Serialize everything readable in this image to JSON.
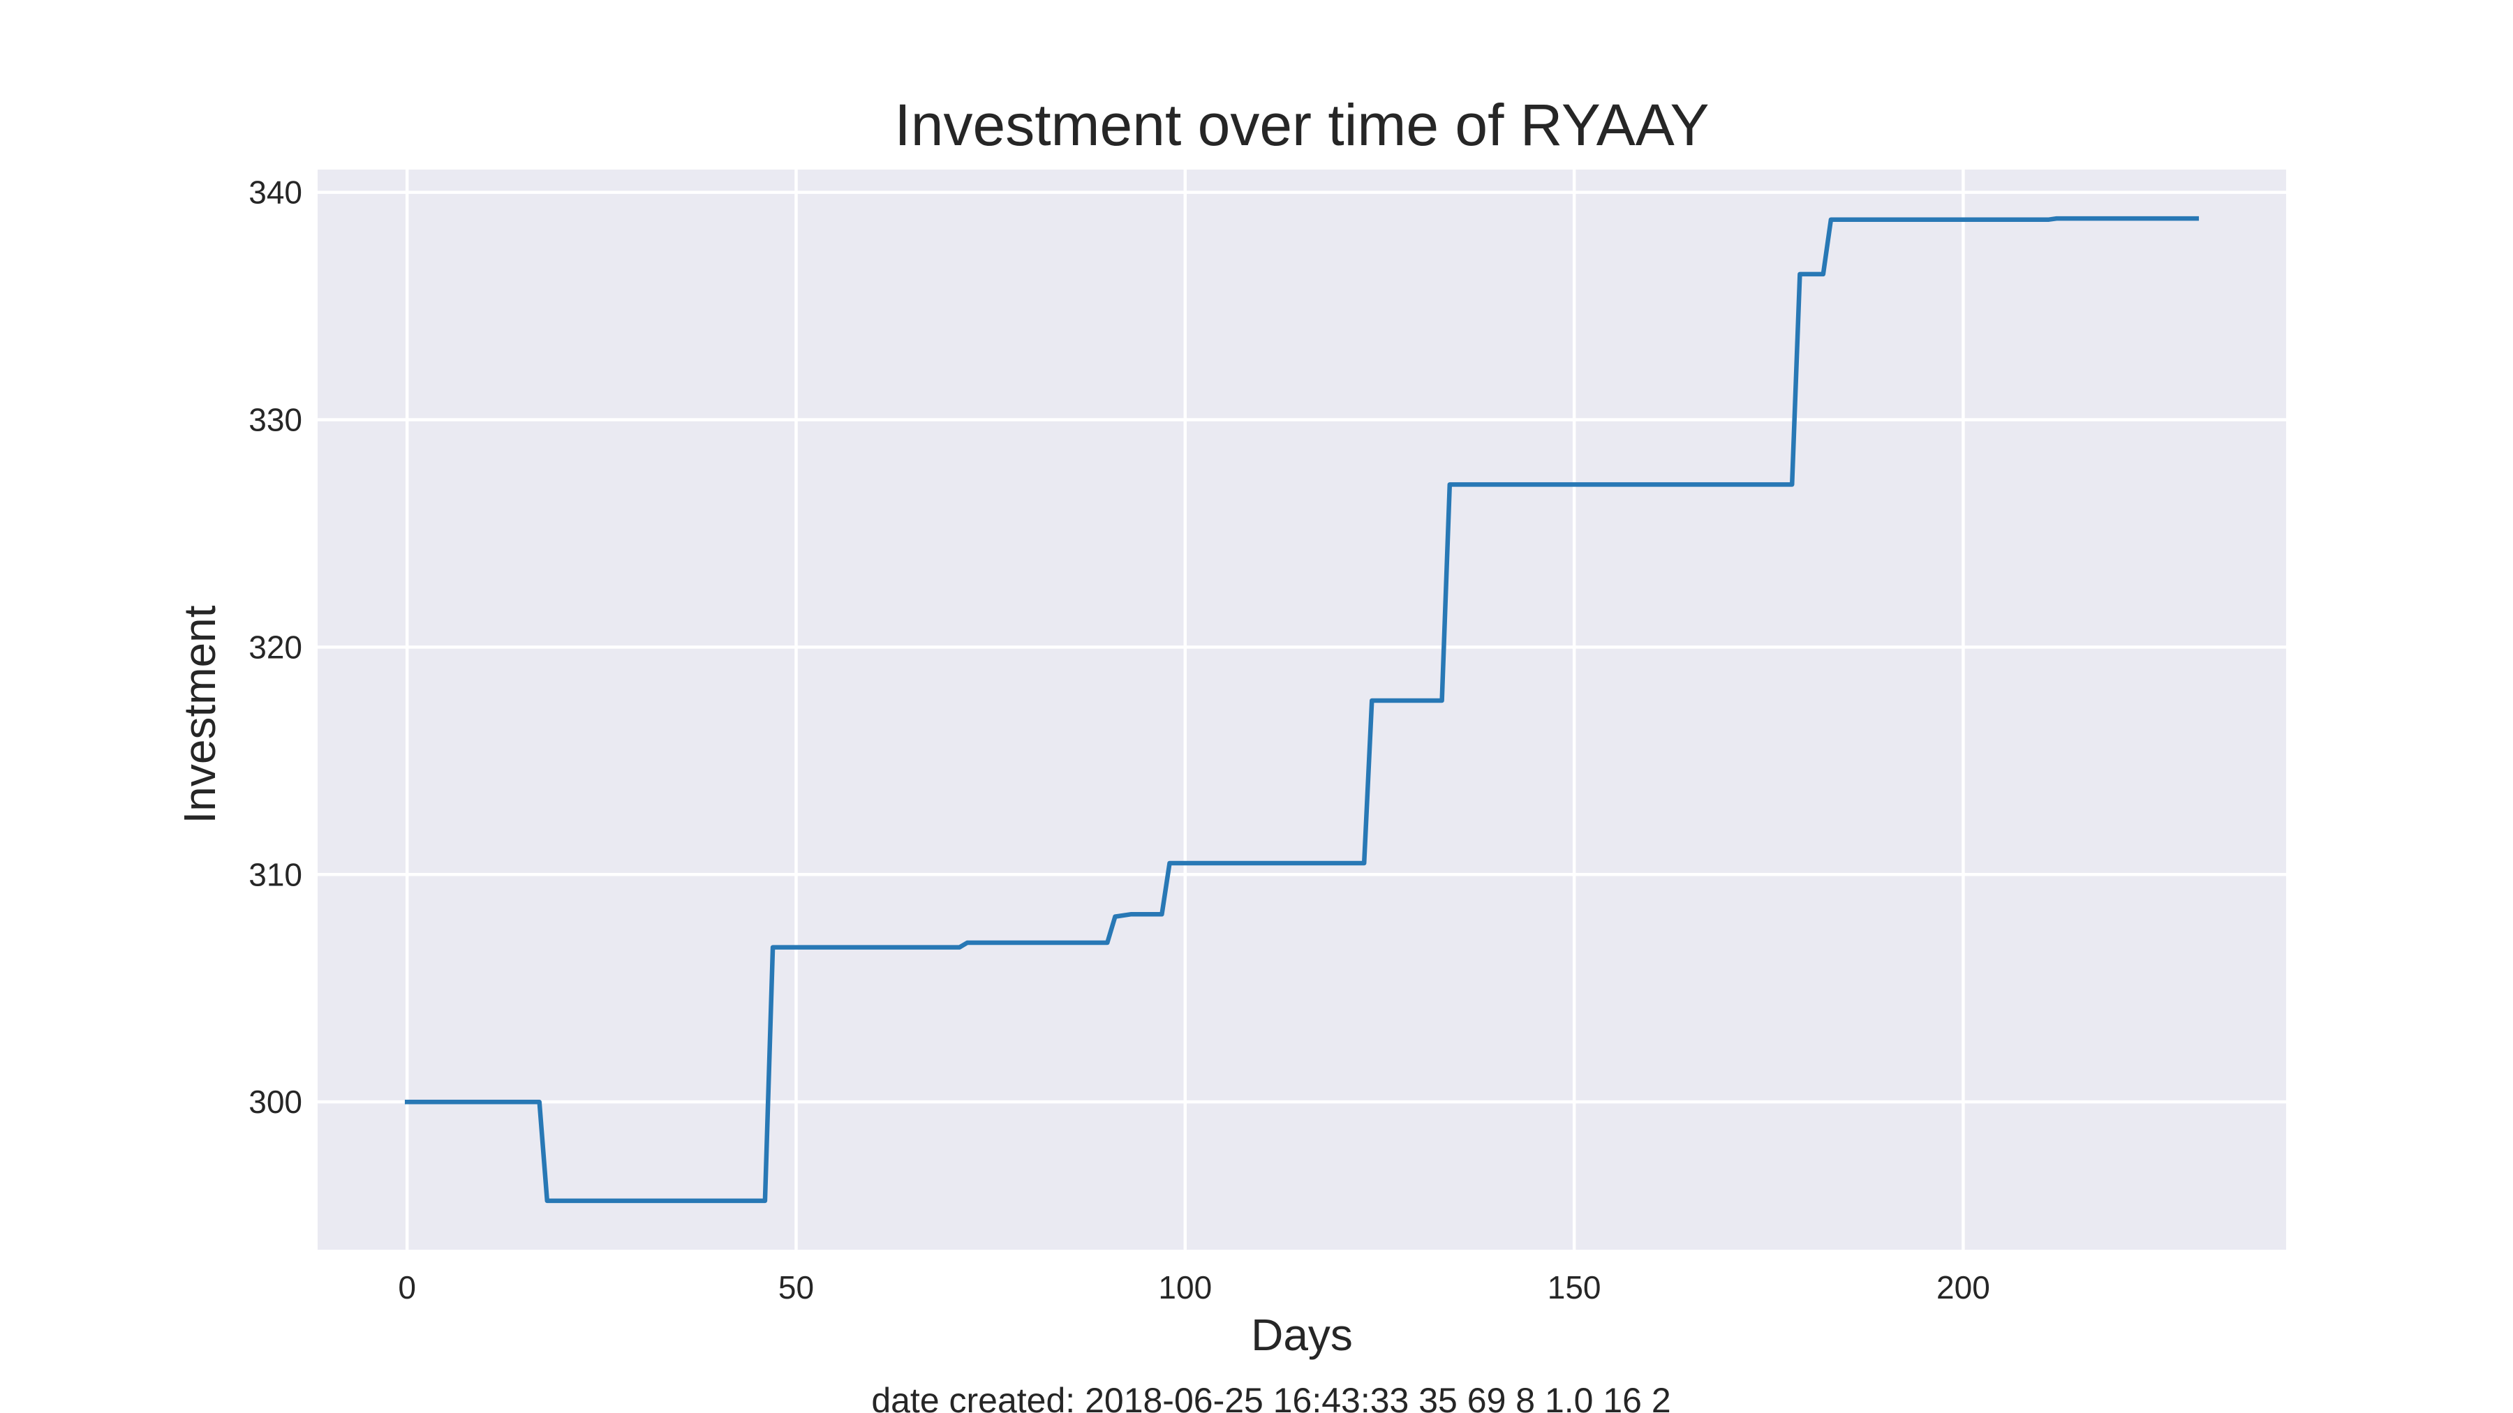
{
  "chart_data": {
    "type": "line",
    "title": "Investment over time of RYAAY",
    "xlabel": "Days",
    "ylabel": "Investment",
    "xlim": [
      -11.5,
      241.5
    ],
    "ylim": [
      293.5,
      341
    ],
    "xticks": [
      0,
      50,
      100,
      150,
      200
    ],
    "yticks": [
      300,
      310,
      320,
      330,
      340
    ],
    "grid": true,
    "footer": "date created: 2018-06-25 16:43:33 35 69 8 1.0 16 2",
    "series": [
      {
        "color": "#2878b5",
        "points": [
          [
            0,
            300.0
          ],
          [
            17,
            300.0
          ],
          [
            18,
            295.65
          ],
          [
            46,
            295.65
          ],
          [
            47,
            306.8
          ],
          [
            71,
            306.8
          ],
          [
            72,
            307.0
          ],
          [
            90,
            307.0
          ],
          [
            91,
            308.15
          ],
          [
            93,
            308.25
          ],
          [
            97,
            308.25
          ],
          [
            98,
            310.5
          ],
          [
            123,
            310.5
          ],
          [
            124,
            317.65
          ],
          [
            133,
            317.65
          ],
          [
            134,
            327.15
          ],
          [
            178,
            327.15
          ],
          [
            179,
            336.4
          ],
          [
            182,
            336.4
          ],
          [
            183,
            338.8
          ],
          [
            211,
            338.8
          ],
          [
            212,
            338.85
          ],
          [
            230,
            338.85
          ]
        ]
      }
    ]
  }
}
